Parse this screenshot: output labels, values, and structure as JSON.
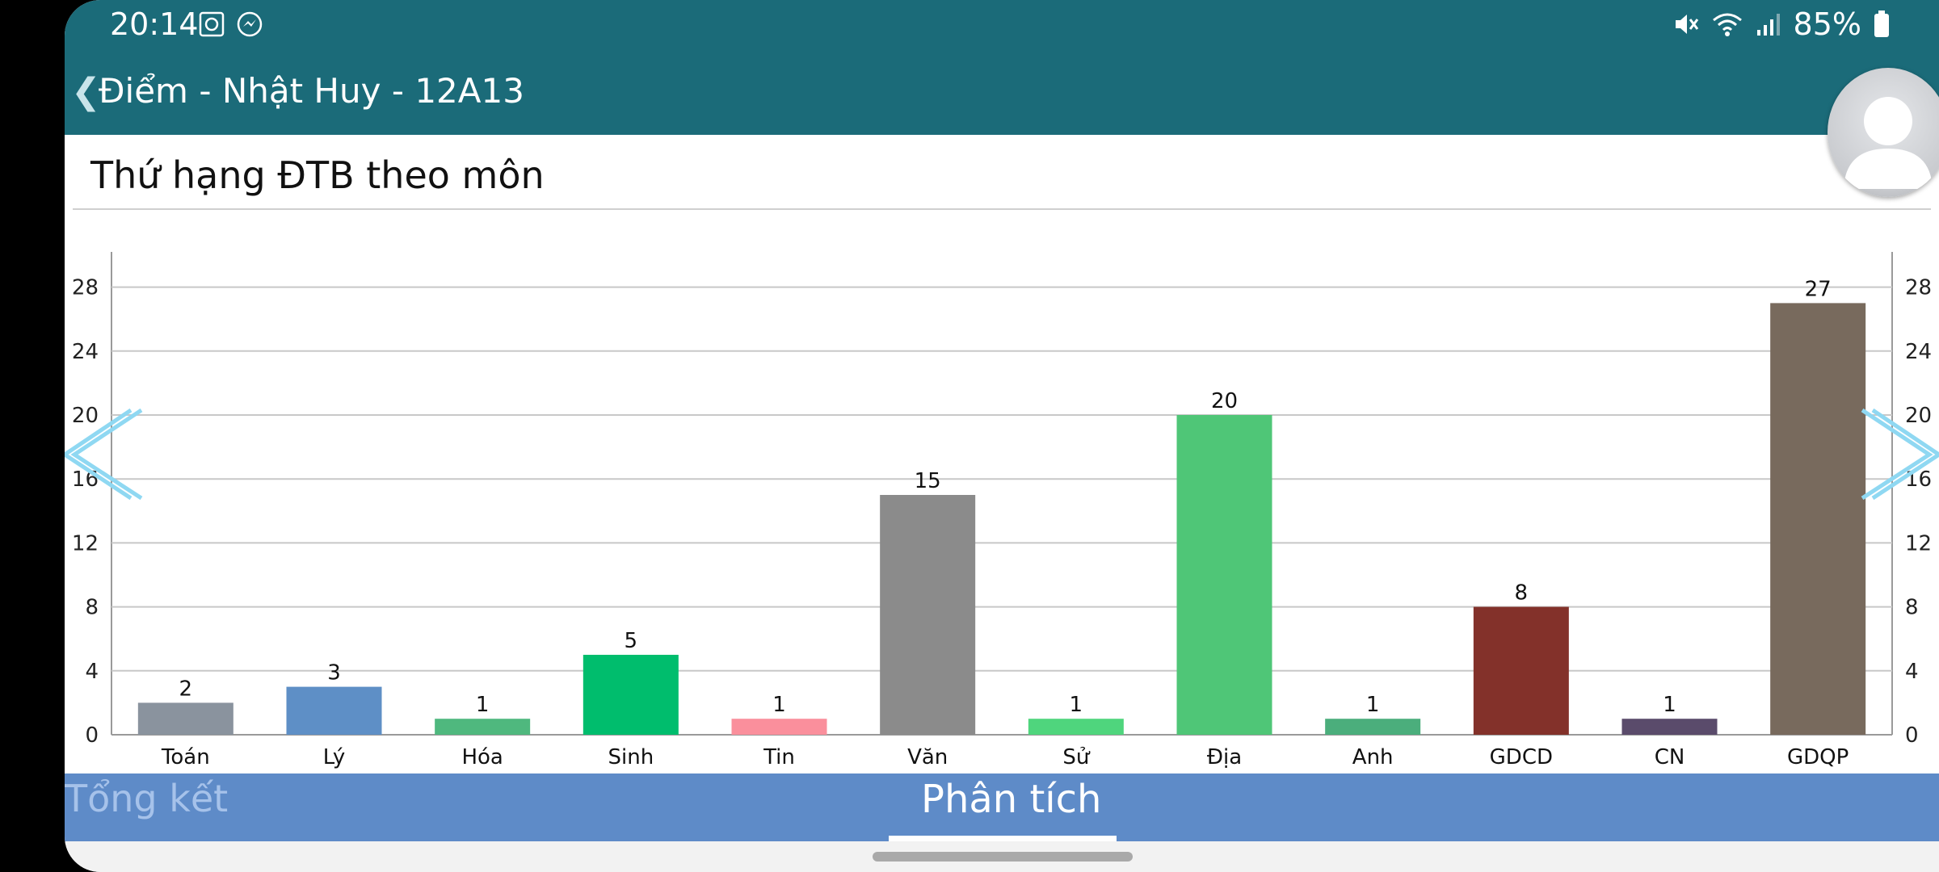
{
  "status_bar": {
    "time": "20:14",
    "battery_text": "85%",
    "icons_left": [
      "media-icon",
      "messenger-icon"
    ],
    "icons_right": [
      "mute-icon",
      "wifi-icon",
      "signal-icon",
      "battery-icon"
    ]
  },
  "header": {
    "title": "Điểm - Nhật Huy - 12A13"
  },
  "chart_data": {
    "type": "bar",
    "title": "Thứ hạng ĐTB theo môn",
    "categories": [
      "Toán",
      "Lý",
      "Hóa",
      "Sinh",
      "Tin",
      "Văn",
      "Sử",
      "Địa",
      "Anh",
      "GDCD",
      "CN",
      "GDQP"
    ],
    "values": [
      2,
      3,
      1,
      5,
      1,
      15,
      1,
      20,
      1,
      8,
      1,
      27
    ],
    "colors": [
      "#8a939e",
      "#5e8fc6",
      "#4fb87e",
      "#00bd6d",
      "#fa8f9c",
      "#8b8b8b",
      "#4fd57d",
      "#4fc677",
      "#4bae7c",
      "#83312a",
      "#5a4b6b",
      "#786a5d"
    ],
    "ylim": [
      0,
      30
    ],
    "yticks": [
      0,
      4,
      8,
      12,
      16,
      20,
      24,
      28
    ],
    "grid": true,
    "xlabel": "",
    "ylabel": ""
  },
  "tabs": [
    {
      "label": "Tổng kết",
      "active": false
    },
    {
      "label": "Phân tích",
      "active": true
    }
  ]
}
